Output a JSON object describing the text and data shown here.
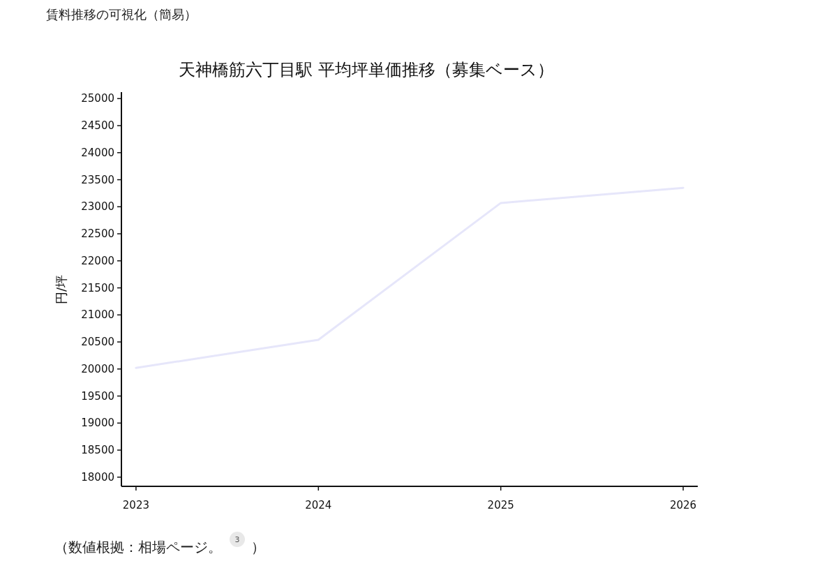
{
  "chart_data": {
    "type": "line",
    "title": "天神橋筋六丁目駅 平均坪単価推移（募集ベース）",
    "ylabel": "円/坪",
    "annotations": [
      "賃料推移の可視化（簡易）",
      "（数値根拠：相場ページ。",
      "3",
      "）"
    ],
    "x": [
      2023,
      2024,
      2025,
      2026
    ],
    "series": [
      {
        "color": "#e6e6fa",
        "values": [
          20020,
          20540,
          23070,
          23350
        ]
      }
    ],
    "xlim": [
      2022.92,
      2026.08
    ],
    "xticks": [
      2023,
      2024,
      2025,
      2026
    ],
    "ylim": [
      17830,
      25120
    ],
    "yticks": [
      18000,
      18500,
      19000,
      19500,
      20000,
      20500,
      21000,
      21500,
      22000,
      22500,
      23000,
      23500,
      24000,
      24500,
      25000
    ],
    "grid": false,
    "marker": "none",
    "line_style": "solid"
  }
}
